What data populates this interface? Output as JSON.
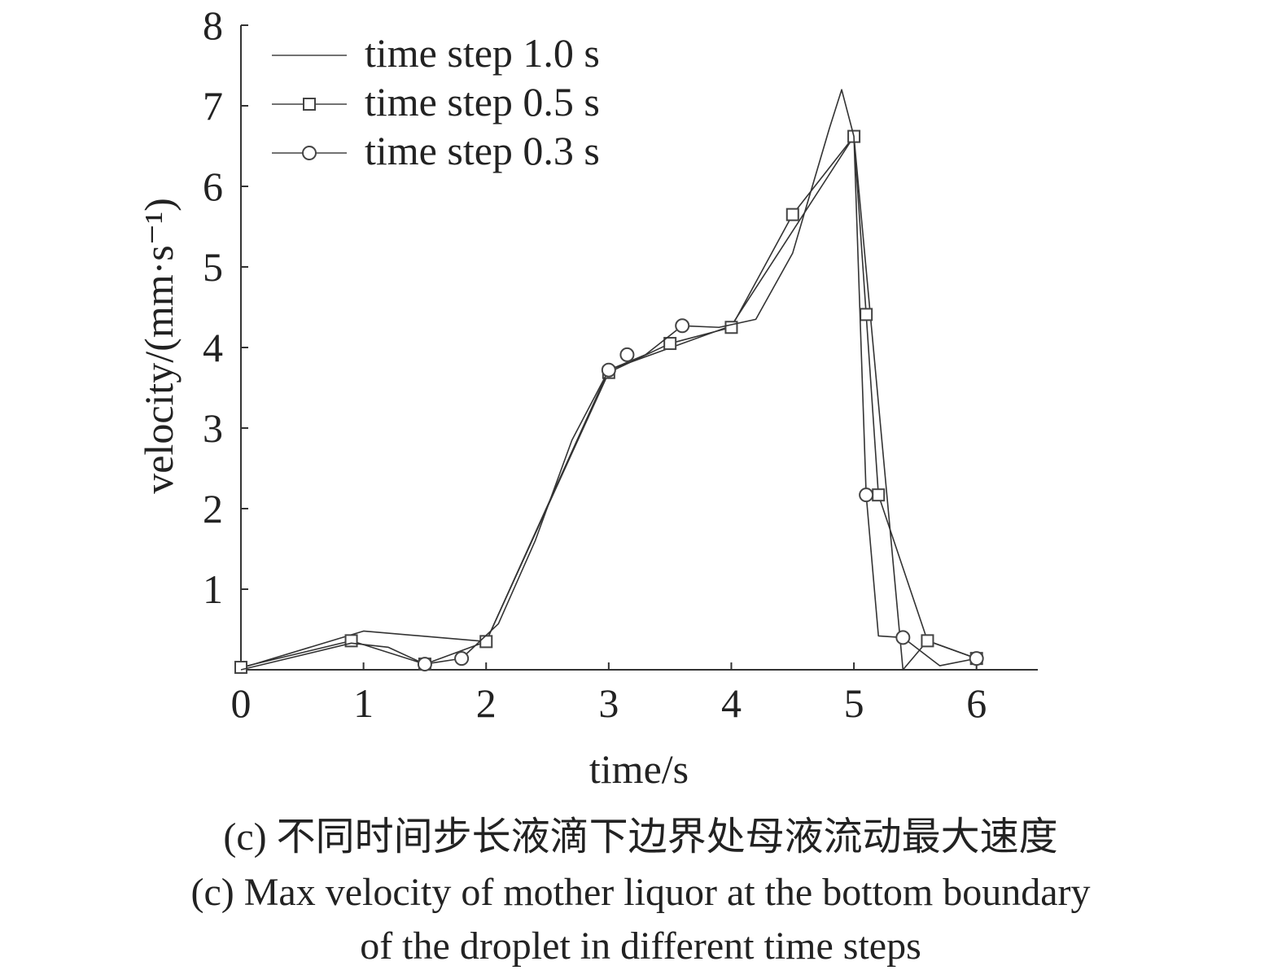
{
  "chart_data": {
    "type": "line",
    "xlabel": "time/s",
    "ylabel": "velocity/(mm·s⁻¹)",
    "xlim": [
      0,
      6.5
    ],
    "ylim": [
      0,
      8
    ],
    "xticks": [
      0,
      1,
      2,
      3,
      4,
      5,
      6
    ],
    "yticks": [
      1,
      2,
      3,
      4,
      5,
      6,
      7,
      8
    ],
    "grid": false,
    "legend_position": "top-left",
    "series": [
      {
        "name": "time step 1.0 s",
        "marker": "none",
        "x": [
          0,
          1,
          2,
          3,
          4,
          5,
          5.4,
          5.6,
          6
        ],
        "y": [
          0.02,
          0.48,
          0.35,
          3.72,
          4.27,
          6.62,
          0.0,
          0.36,
          0.14
        ]
      },
      {
        "name": "time step 0.5 s",
        "marker": "square",
        "x": [
          0,
          0.9,
          1.5,
          2,
          3,
          3.5,
          4,
          4.5,
          5,
          5.1,
          5.2,
          5.6,
          6
        ],
        "y": [
          0.03,
          0.36,
          0.07,
          0.35,
          3.69,
          4.05,
          4.25,
          5.65,
          6.62,
          4.41,
          2.17,
          0.36,
          0.14
        ]
      },
      {
        "name": "time step 0.3 s",
        "marker": "circle",
        "x": [
          0,
          0.9,
          1.2,
          1.5,
          1.8,
          2.1,
          2.4,
          2.7,
          3.0,
          3.3,
          3.6,
          3.9,
          4.2,
          4.5,
          4.8,
          4.9,
          5.0,
          5.1,
          5.2,
          5.4,
          5.7,
          6.0
        ],
        "y": [
          0.0,
          0.33,
          0.28,
          0.07,
          0.14,
          0.57,
          1.6,
          2.85,
          3.72,
          3.91,
          4.27,
          4.25,
          4.35,
          5.17,
          6.72,
          7.2,
          6.62,
          2.17,
          0.42,
          0.4,
          0.05,
          0.14
        ]
      }
    ],
    "highlight_marker": {
      "x": 3.15,
      "y": 3.91,
      "color": "#c05070"
    }
  },
  "caption": {
    "line1": "(c) 不同时间步长液滴下边界处母液流动最大速度",
    "line2": "(c) Max velocity of mother liquor at the bottom boundary",
    "line3": "of the droplet in different time steps"
  }
}
